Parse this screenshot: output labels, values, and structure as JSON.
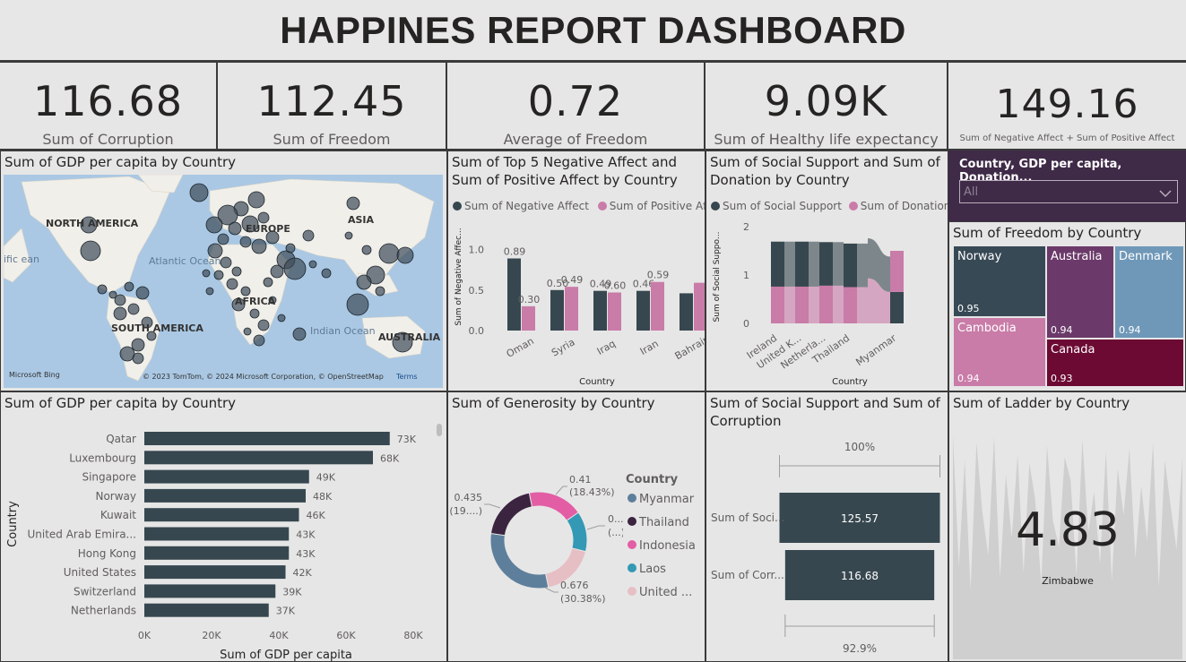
{
  "dashboard": {
    "title": "HAPPINES REPORT DASHBOARD"
  },
  "kpis": [
    {
      "value": "116.68",
      "label": "Sum of Corruption"
    },
    {
      "value": "112.45",
      "label": "Sum of Freedom"
    },
    {
      "value": "0.72",
      "label": "Average of Freedom"
    },
    {
      "value": "9.09K",
      "label": "Sum of Healthy life expectancy"
    },
    {
      "value": "149.16",
      "label": "Sum of Negative Affect + Sum of Positive Affect"
    }
  ],
  "map": {
    "title": "Sum of GDP per capita by Country",
    "labels": [
      "NORTH AMERICA",
      "Atlantic Ocean",
      "SOUTH AMERICA",
      "EUROPE",
      "AFRICA",
      "ASIA",
      "Indian Ocean",
      "AUSTRALIA",
      "ific ean"
    ],
    "bing": "Microsoft Bing",
    "copyright": "© 2023 TomTom, © 2024 Microsoft Corporation, © OpenStreetMap",
    "terms": "Terms",
    "colors": {
      "water": "#aac8e4",
      "land": "#f1efe9",
      "bubble": "#3d4b58"
    }
  },
  "affect_chart": {
    "title": "Sum of Top 5 Negative Affect and Sum of Positive Affect by Country",
    "legend": [
      "Sum of Negative Affect",
      "Sum of Positive Aff..."
    ],
    "xlabel": "Country",
    "ylabel": "Sum of Negative Affec...",
    "colors": [
      "#37474f",
      "#c97ca8"
    ]
  },
  "support_chart": {
    "title": "Sum of Social Support and Sum of Donation by Country",
    "legend": [
      "Sum of Social Support",
      "Sum of Donation"
    ],
    "xlabel": "Country",
    "ylabel": "Sum of Social Suppo...",
    "colors": [
      "#37474f",
      "#c97ca8"
    ]
  },
  "slicer": {
    "title": "Country, GDP per capita, Donation...",
    "value": "All",
    "colors": {
      "bg": "#3f2a47"
    }
  },
  "freedom_treemap": {
    "title": "Sum of Freedom by Country",
    "cells": [
      {
        "name": "Norway",
        "value": "0.95",
        "color": "#374955"
      },
      {
        "name": "Australia",
        "value": "0.94",
        "color": "#6b3a6a"
      },
      {
        "name": "Denmark",
        "value": "0.94",
        "color": "#6f98b8"
      },
      {
        "name": "Cambodia",
        "value": "0.94",
        "color": "#c97ca8"
      },
      {
        "name": "Canada",
        "value": "0.93",
        "color": "#6c0a33"
      }
    ]
  },
  "gdp_bar": {
    "title": "Sum of GDP per capita by Country",
    "xlabel": "Sum of GDP per capita",
    "ylabel": "Country",
    "color": "#37474f"
  },
  "generosity_donut": {
    "title": "Sum of Generosity by Country",
    "legend_title": "Country",
    "legend": [
      {
        "name": "Myanmar",
        "color": "#5d7f9c"
      },
      {
        "name": "Thailand",
        "color": "#3a2440"
      },
      {
        "name": "Indonesia",
        "color": "#e35da5"
      },
      {
        "name": "Laos",
        "color": "#3399b5"
      },
      {
        "name": "United ...",
        "color": "#e6bfc4"
      }
    ],
    "labels": [
      "0.41",
      "(18.43%)",
      "0.435",
      "(19....)",
      "0....",
      "(...)",
      "0.676",
      "(30.38%)"
    ]
  },
  "support_corruption": {
    "title": "Sum of Social Support and Sum of Corruption",
    "top_pct": "100%",
    "bottom_pct": "92.9%",
    "rows": [
      {
        "label": "Sum of Soci...",
        "value": "125.57"
      },
      {
        "label": "Sum of Corr...",
        "value": "116.68"
      }
    ],
    "color": "#37474f"
  },
  "ladder": {
    "title": "Sum of Ladder by Country",
    "value": "4.83",
    "country": "Zimbabwe"
  },
  "chart_data": [
    {
      "type": "bar",
      "title": "Sum of Top 5 Negative Affect and Sum of Positive Affect by Country",
      "categories": [
        "Oman",
        "Syria",
        "Iraq",
        "Iran",
        "Bahrain"
      ],
      "series": [
        {
          "name": "Sum of Negative Affect",
          "values": [
            0.89,
            0.5,
            0.49,
            0.49,
            0.46
          ]
        },
        {
          "name": "Sum of Positive Affect",
          "values": [
            0.3,
            0.54,
            0.47,
            0.6,
            0.59
          ]
        }
      ],
      "data_labels": [
        "0.89",
        "0.30",
        "0.50",
        "0.49",
        "0.49",
        "0.60",
        "0.46",
        "0.59"
      ],
      "yticks": [
        "0.0",
        "0.5",
        "1.0"
      ],
      "ylim": [
        0,
        1.15
      ],
      "xlabel": "Country",
      "ylabel": "Sum of Negative Affec..."
    },
    {
      "type": "area",
      "title": "Sum of Social Support and Sum of Donation by Country",
      "categories": [
        "Ireland",
        "United K...",
        "Netherla...",
        "Thailand",
        "Myanmar"
      ],
      "series": [
        {
          "name": "Sum of Social Support",
          "values": [
            0.93,
            0.93,
            0.9,
            0.9,
            0.65
          ]
        },
        {
          "name": "Sum of Donation",
          "values": [
            0.76,
            0.76,
            0.78,
            0.75,
            0.85
          ]
        }
      ],
      "yticks": [
        "0",
        "1",
        "2"
      ],
      "ylim": [
        0,
        2
      ],
      "xlabel": "Country",
      "ylabel": "Sum of Social Suppo..."
    },
    {
      "type": "bar",
      "title": "Sum of GDP per capita by Country",
      "orientation": "horizontal",
      "categories": [
        "Qatar",
        "Luxembourg",
        "Singapore",
        "Norway",
        "Kuwait",
        "United Arab Emira...",
        "Hong Kong",
        "United States",
        "Switzerland",
        "Netherlands"
      ],
      "values": [
        73000,
        68000,
        49000,
        48000,
        46000,
        43000,
        43000,
        42000,
        39000,
        37000
      ],
      "data_labels": [
        "73K",
        "68K",
        "49K",
        "48K",
        "46K",
        "43K",
        "43K",
        "42K",
        "39K",
        "37K"
      ],
      "xticks": [
        "0K",
        "20K",
        "40K",
        "60K",
        "80K"
      ],
      "xlim": [
        0,
        80000
      ],
      "xlabel": "Sum of GDP per capita",
      "ylabel": "Country"
    },
    {
      "type": "pie",
      "title": "Sum of Generosity by Country",
      "categories": [
        "Indonesia",
        "Laos",
        "United ...",
        "Myanmar",
        "Thailand"
      ],
      "values": [
        0.41,
        0.3,
        0.4,
        0.676,
        0.435
      ],
      "colors": [
        "#e35da5",
        "#3399b5",
        "#e6bfc4",
        "#5d7f9c",
        "#3a2440"
      ]
    },
    {
      "type": "bar",
      "title": "Sum of Social Support and Sum of Corruption",
      "orientation": "horizontal",
      "categories": [
        "Sum of Soci...",
        "Sum of Corr..."
      ],
      "values": [
        125.57,
        116.68
      ],
      "data_labels": [
        "125.57",
        "116.68"
      ],
      "xlim": [
        0,
        125.57
      ]
    },
    {
      "type": "area",
      "title": "Sum of Ladder by Country",
      "values": [
        7.8,
        3.2,
        6.9,
        2.4,
        7.5,
        5.1,
        3.6,
        7.7,
        2.8,
        6.4,
        4.2,
        7.1,
        3.0,
        6.8,
        5.5,
        2.6,
        7.4,
        4.8,
        3.9,
        7.0,
        6.2,
        2.9,
        7.6,
        4.4,
        5.8,
        3.3,
        7.2,
        2.7,
        6.6,
        5.0,
        7.3,
        3.5,
        6.0,
        4.1,
        7.5,
        2.5,
        6.9,
        5.3,
        3.8,
        7.0
      ]
    }
  ]
}
